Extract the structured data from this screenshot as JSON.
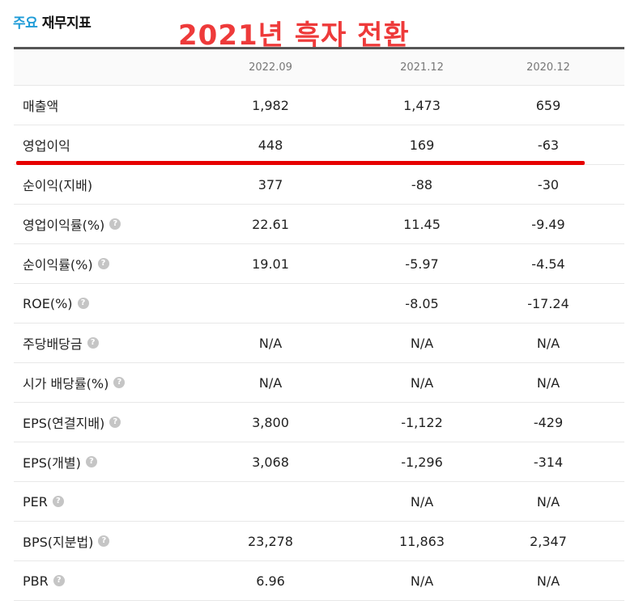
{
  "header": {
    "title_accent": "주요",
    "title_rest": "재무지표"
  },
  "annotation": {
    "text": "2021년 흑자 전환",
    "color": "#ee3a3a"
  },
  "colors": {
    "accent": "#1e9bd7",
    "highlight_line": "#e60000"
  },
  "table": {
    "columns": [
      "2022.09",
      "2021.12",
      "2020.12"
    ],
    "rows": [
      {
        "label": "매출액",
        "help": false,
        "values": [
          "1,982",
          "1,473",
          "659"
        ]
      },
      {
        "label": "영업이익",
        "help": false,
        "values": [
          "448",
          "169",
          "-63"
        ]
      },
      {
        "label": "순이익(지배)",
        "help": false,
        "values": [
          "377",
          "-88",
          "-30"
        ]
      },
      {
        "label": "영업이익률(%)",
        "help": true,
        "values": [
          "22.61",
          "11.45",
          "-9.49"
        ]
      },
      {
        "label": "순이익률(%)",
        "help": true,
        "values": [
          "19.01",
          "-5.97",
          "-4.54"
        ]
      },
      {
        "label": "ROE(%)",
        "help": true,
        "values": [
          "",
          "-8.05",
          "-17.24"
        ]
      },
      {
        "label": "주당배당금",
        "help": true,
        "values": [
          "N/A",
          "N/A",
          "N/A"
        ]
      },
      {
        "label": "시가 배당률(%)",
        "help": true,
        "values": [
          "N/A",
          "N/A",
          "N/A"
        ]
      },
      {
        "label": "EPS(연결지배)",
        "help": true,
        "values": [
          "3,800",
          "-1,122",
          "-429"
        ]
      },
      {
        "label": "EPS(개별)",
        "help": true,
        "values": [
          "3,068",
          "-1,296",
          "-314"
        ]
      },
      {
        "label": "PER",
        "help": true,
        "values": [
          "",
          "N/A",
          "N/A"
        ]
      },
      {
        "label": "BPS(지분법)",
        "help": true,
        "values": [
          "23,278",
          "11,863",
          "2,347"
        ]
      },
      {
        "label": "PBR",
        "help": true,
        "values": [
          "6.96",
          "N/A",
          "N/A"
        ]
      }
    ],
    "help_icon": "question-circle-icon",
    "help_glyph": "?"
  }
}
